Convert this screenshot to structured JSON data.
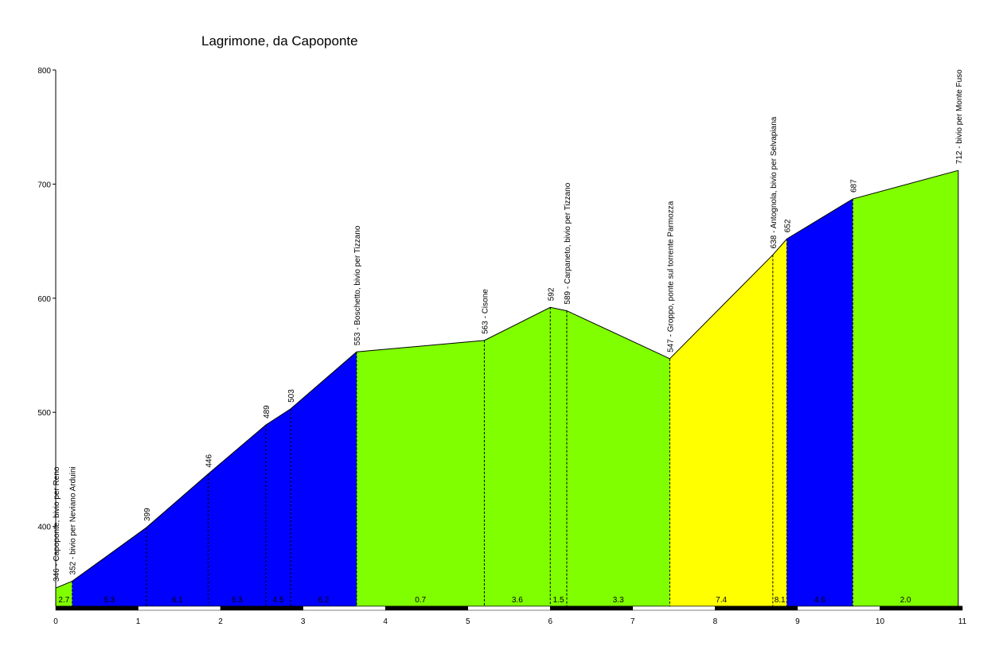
{
  "chart_data": {
    "type": "area",
    "title": "Lagrimone, da Capoponte",
    "xlabel": "",
    "ylabel": "",
    "xlim": [
      0,
      11
    ],
    "ylim": [
      330,
      800
    ],
    "x_ticks": [
      0,
      1,
      2,
      3,
      4,
      5,
      6,
      7,
      8,
      9,
      10,
      11
    ],
    "y_ticks": [
      400,
      500,
      600,
      700,
      800
    ],
    "grid": false,
    "profile": [
      {
        "x": 0.0,
        "y": 346,
        "label": "346 - Capoponte, bivio per Reno"
      },
      {
        "x": 0.2,
        "y": 352,
        "label": "352 - bivio per Neviano Arduini"
      },
      {
        "x": 1.1,
        "y": 399,
        "label": "399"
      },
      {
        "x": 1.85,
        "y": 446,
        "label": "446"
      },
      {
        "x": 2.55,
        "y": 489,
        "label": "489"
      },
      {
        "x": 2.85,
        "y": 503,
        "label": "503"
      },
      {
        "x": 3.65,
        "y": 553,
        "label": "553 - Boschetto, bivio per Tizzano"
      },
      {
        "x": 5.2,
        "y": 563,
        "label": "563 - Cisone"
      },
      {
        "x": 6.0,
        "y": 592,
        "label": "592"
      },
      {
        "x": 6.2,
        "y": 589,
        "label": "589 - Carpaneto, bivio per Tizzano"
      },
      {
        "x": 7.45,
        "y": 547,
        "label": "547 - Groppo, ponte sul torrente Parmozza"
      },
      {
        "x": 8.7,
        "y": 638,
        "label": "638 - Antognola, bivio per Selvapiana"
      },
      {
        "x": 8.87,
        "y": 652,
        "label": "652"
      },
      {
        "x": 9.67,
        "y": 687,
        "label": "687"
      },
      {
        "x": 10.95,
        "y": 712,
        "label": "712 - bivio per Monte Fuso"
      }
    ],
    "segments": [
      {
        "from": 0.0,
        "to": 0.2,
        "gradient": "2.7",
        "color": "#80ff00"
      },
      {
        "from": 0.2,
        "to": 1.1,
        "gradient": "5.3",
        "color": "#0000ff"
      },
      {
        "from": 1.1,
        "to": 1.85,
        "gradient": "6.1",
        "color": "#0000ff"
      },
      {
        "from": 1.85,
        "to": 2.55,
        "gradient": "6.3",
        "color": "#0000ff"
      },
      {
        "from": 2.55,
        "to": 2.85,
        "gradient": "4.5",
        "color": "#0000ff"
      },
      {
        "from": 2.85,
        "to": 3.65,
        "gradient": "6.2",
        "color": "#0000ff"
      },
      {
        "from": 3.65,
        "to": 5.2,
        "gradient": "0.7",
        "color": "#80ff00"
      },
      {
        "from": 5.2,
        "to": 6.0,
        "gradient": "3.6",
        "color": "#80ff00"
      },
      {
        "from": 6.0,
        "to": 6.2,
        "gradient": "1.5",
        "color": "#80ff00"
      },
      {
        "from": 6.2,
        "to": 7.45,
        "gradient": "3.3",
        "color": "#80ff00"
      },
      {
        "from": 7.45,
        "to": 8.7,
        "gradient": "7.4",
        "color": "#ffff00"
      },
      {
        "from": 8.7,
        "to": 8.87,
        "gradient": "8.1",
        "color": "#ffff00"
      },
      {
        "from": 8.87,
        "to": 9.67,
        "gradient": "4.6",
        "color": "#0000ff"
      },
      {
        "from": 9.67,
        "to": 10.95,
        "gradient": "2.0",
        "color": "#80ff00"
      }
    ]
  }
}
